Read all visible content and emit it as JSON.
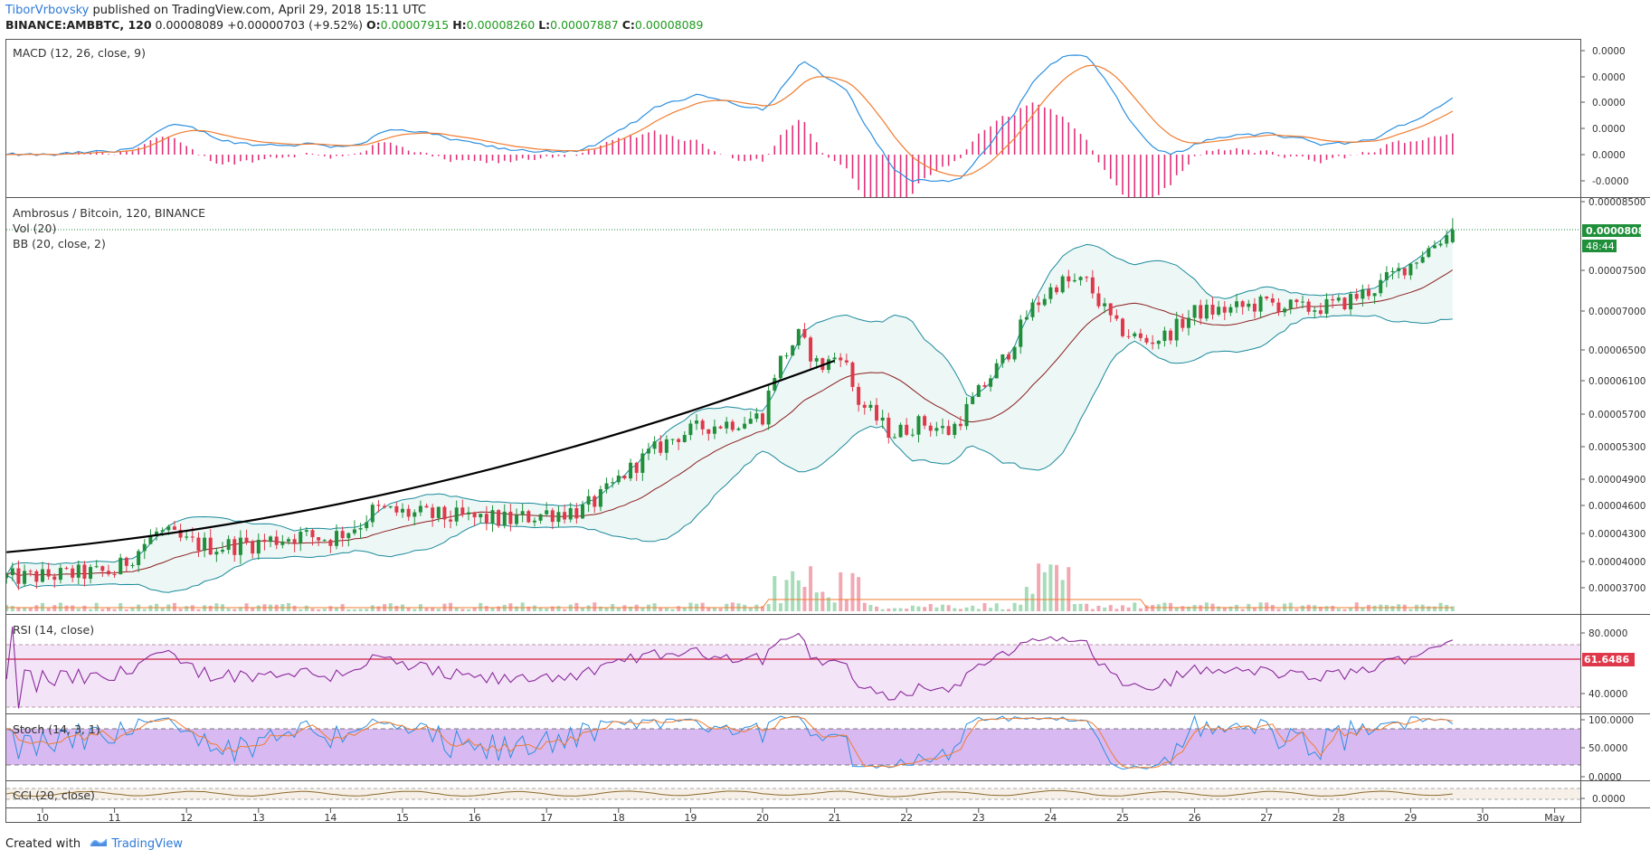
{
  "header": {
    "author": "TiborVrbovsky",
    "published_text": "published on TradingView.com, April 29, 2018 15:11 UTC",
    "symbol": "BINANCE:AMBBTC, 120",
    "last": "0.00008089",
    "change": "+0.00000703 (+9.52%)",
    "o_label": "O:",
    "o_value": "0.00007915",
    "h_label": "H:",
    "h_value": "0.00008260",
    "l_label": "L:",
    "l_value": "0.00007887",
    "c_label": "C:",
    "c_value": "0.00008089"
  },
  "footer": {
    "created_with": "Created with",
    "brand": "TradingView"
  },
  "colors": {
    "up": "#1f8f3a",
    "down": "#e0384b",
    "macd": "#2b8fe0",
    "signal": "#f07c30",
    "hist": "#e2307a",
    "bb_band": "#1a8a9a",
    "bb_basis": "#8b1e1e",
    "rsi": "#8a2a9a",
    "stoch_k": "#2b8fe0",
    "stoch_d": "#f07c30",
    "cci": "#8a6a2a",
    "trend": "#000000",
    "price_badge": "#1f8f3a",
    "rsi_badge": "#e0384b"
  },
  "chart_data": {
    "type": "candlestick",
    "title": "Ambrosus / Bitcoin, 120, BINANCE",
    "x_tick_labels": [
      "10",
      "11",
      "12",
      "13",
      "14",
      "15",
      "16",
      "17",
      "18",
      "19",
      "20",
      "21",
      "22",
      "23",
      "24",
      "25",
      "26",
      "27",
      "28",
      "29",
      "30",
      "May"
    ],
    "price_axis_labels": [
      "0.00008500",
      "0.00007500",
      "0.00007000",
      "0.00006500",
      "0.00006100",
      "0.00005700",
      "0.00005300",
      "0.00004900",
      "0.00004600",
      "0.00004300",
      "0.00004000",
      "0.00003700"
    ],
    "last_price": "0.00008089",
    "countdown": "48:44",
    "macd": {
      "label": "MACD (12, 26, close, 9)",
      "axis_labels": [
        "0.0000",
        "0.0000",
        "0.0000",
        "0.0000",
        "0.0000",
        "-0.0000"
      ]
    },
    "indicators": {
      "vol_label": "Vol (20)",
      "bb_label": "BB (20, close, 2)"
    },
    "rsi": {
      "label": "RSI (14, close)",
      "axis_labels": [
        "80.0000",
        "40.0000"
      ],
      "badge": "61.6486",
      "value": 61.6486
    },
    "stoch": {
      "label": "Stoch (14, 3, 1)",
      "axis_labels": [
        "100.0000",
        "50.0000",
        "0.0000"
      ]
    },
    "cci": {
      "label": "CCI (20, close)",
      "axis_labels": [
        "0.0000"
      ]
    },
    "close_anchors_by_day": [
      [
        9.5,
        3.81e-05
      ],
      [
        10,
        3.83e-05
      ],
      [
        10.5,
        3.86e-05
      ],
      [
        11,
        3.88e-05
      ],
      [
        11.4,
        4.18e-05
      ],
      [
        11.6,
        4.32e-05
      ],
      [
        12,
        4.2e-05
      ],
      [
        12.4,
        4.16e-05
      ],
      [
        13,
        4.2e-05
      ],
      [
        13.5,
        4.28e-05
      ],
      [
        14,
        4.25e-05
      ],
      [
        14.4,
        4.4e-05
      ],
      [
        14.6,
        4.55e-05
      ],
      [
        15,
        4.52e-05
      ],
      [
        15.5,
        4.48e-05
      ],
      [
        16,
        4.46e-05
      ],
      [
        16.5,
        4.44e-05
      ],
      [
        17,
        4.52e-05
      ],
      [
        17.5,
        4.55e-05
      ],
      [
        17.8,
        4.72e-05
      ],
      [
        18,
        4.9e-05
      ],
      [
        18.4,
        5.2e-05
      ],
      [
        18.8,
        5.43e-05
      ],
      [
        19.2,
        5.55e-05
      ],
      [
        19.6,
        5.6e-05
      ],
      [
        20,
        5.68e-05
      ],
      [
        20.2,
        6.3e-05
      ],
      [
        20.5,
        6.68e-05
      ],
      [
        20.8,
        6.26e-05
      ],
      [
        21.1,
        6.48e-05
      ],
      [
        21.3,
        5.88e-05
      ],
      [
        21.8,
        5.45e-05
      ],
      [
        22.2,
        5.6e-05
      ],
      [
        22.6,
        5.48e-05
      ],
      [
        23,
        5.95e-05
      ],
      [
        23.4,
        6.45e-05
      ],
      [
        23.7,
        7e-05
      ],
      [
        24.1,
        7.35e-05
      ],
      [
        24.5,
        7.35e-05
      ],
      [
        24.9,
        6.8e-05
      ],
      [
        25.3,
        6.6e-05
      ],
      [
        25.6,
        6.68e-05
      ],
      [
        26,
        6.98e-05
      ],
      [
        26.5,
        7.02e-05
      ],
      [
        27,
        7.1e-05
      ],
      [
        27.5,
        7.02e-05
      ],
      [
        28,
        7.08e-05
      ],
      [
        28.5,
        7.28e-05
      ],
      [
        29,
        7.6e-05
      ],
      [
        29.3,
        7.86e-05
      ],
      [
        29.6,
        8.09e-05
      ]
    ],
    "trend_line": {
      "from": [
        9.5,
        4.1e-05
      ],
      "to": [
        21.0,
        6.36e-05
      ]
    }
  }
}
